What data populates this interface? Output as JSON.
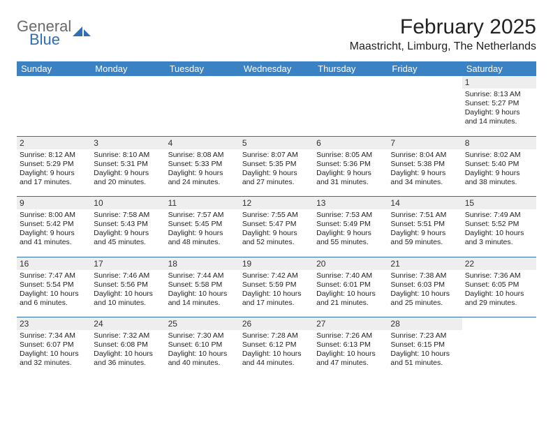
{
  "logo": {
    "word1": "General",
    "word2": "Blue"
  },
  "title": "February 2025",
  "location": "Maastricht, Limburg, The Netherlands",
  "colors": {
    "header_bg": "#3b82c4",
    "header_text": "#ffffff",
    "rule": "#2f6fb5",
    "daynum_bg": "#eeeeee",
    "logo_gray": "#6a6a6a",
    "logo_blue": "#2f6fb5"
  },
  "days_of_week": [
    "Sunday",
    "Monday",
    "Tuesday",
    "Wednesday",
    "Thursday",
    "Friday",
    "Saturday"
  ],
  "weeks": [
    [
      null,
      null,
      null,
      null,
      null,
      null,
      {
        "n": "1",
        "sr": "Sunrise: 8:13 AM",
        "ss": "Sunset: 5:27 PM",
        "d1": "Daylight: 9 hours",
        "d2": "and 14 minutes."
      }
    ],
    [
      {
        "n": "2",
        "sr": "Sunrise: 8:12 AM",
        "ss": "Sunset: 5:29 PM",
        "d1": "Daylight: 9 hours",
        "d2": "and 17 minutes."
      },
      {
        "n": "3",
        "sr": "Sunrise: 8:10 AM",
        "ss": "Sunset: 5:31 PM",
        "d1": "Daylight: 9 hours",
        "d2": "and 20 minutes."
      },
      {
        "n": "4",
        "sr": "Sunrise: 8:08 AM",
        "ss": "Sunset: 5:33 PM",
        "d1": "Daylight: 9 hours",
        "d2": "and 24 minutes."
      },
      {
        "n": "5",
        "sr": "Sunrise: 8:07 AM",
        "ss": "Sunset: 5:35 PM",
        "d1": "Daylight: 9 hours",
        "d2": "and 27 minutes."
      },
      {
        "n": "6",
        "sr": "Sunrise: 8:05 AM",
        "ss": "Sunset: 5:36 PM",
        "d1": "Daylight: 9 hours",
        "d2": "and 31 minutes."
      },
      {
        "n": "7",
        "sr": "Sunrise: 8:04 AM",
        "ss": "Sunset: 5:38 PM",
        "d1": "Daylight: 9 hours",
        "d2": "and 34 minutes."
      },
      {
        "n": "8",
        "sr": "Sunrise: 8:02 AM",
        "ss": "Sunset: 5:40 PM",
        "d1": "Daylight: 9 hours",
        "d2": "and 38 minutes."
      }
    ],
    [
      {
        "n": "9",
        "sr": "Sunrise: 8:00 AM",
        "ss": "Sunset: 5:42 PM",
        "d1": "Daylight: 9 hours",
        "d2": "and 41 minutes."
      },
      {
        "n": "10",
        "sr": "Sunrise: 7:58 AM",
        "ss": "Sunset: 5:43 PM",
        "d1": "Daylight: 9 hours",
        "d2": "and 45 minutes."
      },
      {
        "n": "11",
        "sr": "Sunrise: 7:57 AM",
        "ss": "Sunset: 5:45 PM",
        "d1": "Daylight: 9 hours",
        "d2": "and 48 minutes."
      },
      {
        "n": "12",
        "sr": "Sunrise: 7:55 AM",
        "ss": "Sunset: 5:47 PM",
        "d1": "Daylight: 9 hours",
        "d2": "and 52 minutes."
      },
      {
        "n": "13",
        "sr": "Sunrise: 7:53 AM",
        "ss": "Sunset: 5:49 PM",
        "d1": "Daylight: 9 hours",
        "d2": "and 55 minutes."
      },
      {
        "n": "14",
        "sr": "Sunrise: 7:51 AM",
        "ss": "Sunset: 5:51 PM",
        "d1": "Daylight: 9 hours",
        "d2": "and 59 minutes."
      },
      {
        "n": "15",
        "sr": "Sunrise: 7:49 AM",
        "ss": "Sunset: 5:52 PM",
        "d1": "Daylight: 10 hours",
        "d2": "and 3 minutes."
      }
    ],
    [
      {
        "n": "16",
        "sr": "Sunrise: 7:47 AM",
        "ss": "Sunset: 5:54 PM",
        "d1": "Daylight: 10 hours",
        "d2": "and 6 minutes."
      },
      {
        "n": "17",
        "sr": "Sunrise: 7:46 AM",
        "ss": "Sunset: 5:56 PM",
        "d1": "Daylight: 10 hours",
        "d2": "and 10 minutes."
      },
      {
        "n": "18",
        "sr": "Sunrise: 7:44 AM",
        "ss": "Sunset: 5:58 PM",
        "d1": "Daylight: 10 hours",
        "d2": "and 14 minutes."
      },
      {
        "n": "19",
        "sr": "Sunrise: 7:42 AM",
        "ss": "Sunset: 5:59 PM",
        "d1": "Daylight: 10 hours",
        "d2": "and 17 minutes."
      },
      {
        "n": "20",
        "sr": "Sunrise: 7:40 AM",
        "ss": "Sunset: 6:01 PM",
        "d1": "Daylight: 10 hours",
        "d2": "and 21 minutes."
      },
      {
        "n": "21",
        "sr": "Sunrise: 7:38 AM",
        "ss": "Sunset: 6:03 PM",
        "d1": "Daylight: 10 hours",
        "d2": "and 25 minutes."
      },
      {
        "n": "22",
        "sr": "Sunrise: 7:36 AM",
        "ss": "Sunset: 6:05 PM",
        "d1": "Daylight: 10 hours",
        "d2": "and 29 minutes."
      }
    ],
    [
      {
        "n": "23",
        "sr": "Sunrise: 7:34 AM",
        "ss": "Sunset: 6:07 PM",
        "d1": "Daylight: 10 hours",
        "d2": "and 32 minutes."
      },
      {
        "n": "24",
        "sr": "Sunrise: 7:32 AM",
        "ss": "Sunset: 6:08 PM",
        "d1": "Daylight: 10 hours",
        "d2": "and 36 minutes."
      },
      {
        "n": "25",
        "sr": "Sunrise: 7:30 AM",
        "ss": "Sunset: 6:10 PM",
        "d1": "Daylight: 10 hours",
        "d2": "and 40 minutes."
      },
      {
        "n": "26",
        "sr": "Sunrise: 7:28 AM",
        "ss": "Sunset: 6:12 PM",
        "d1": "Daylight: 10 hours",
        "d2": "and 44 minutes."
      },
      {
        "n": "27",
        "sr": "Sunrise: 7:26 AM",
        "ss": "Sunset: 6:13 PM",
        "d1": "Daylight: 10 hours",
        "d2": "and 47 minutes."
      },
      {
        "n": "28",
        "sr": "Sunrise: 7:23 AM",
        "ss": "Sunset: 6:15 PM",
        "d1": "Daylight: 10 hours",
        "d2": "and 51 minutes."
      },
      null
    ]
  ]
}
